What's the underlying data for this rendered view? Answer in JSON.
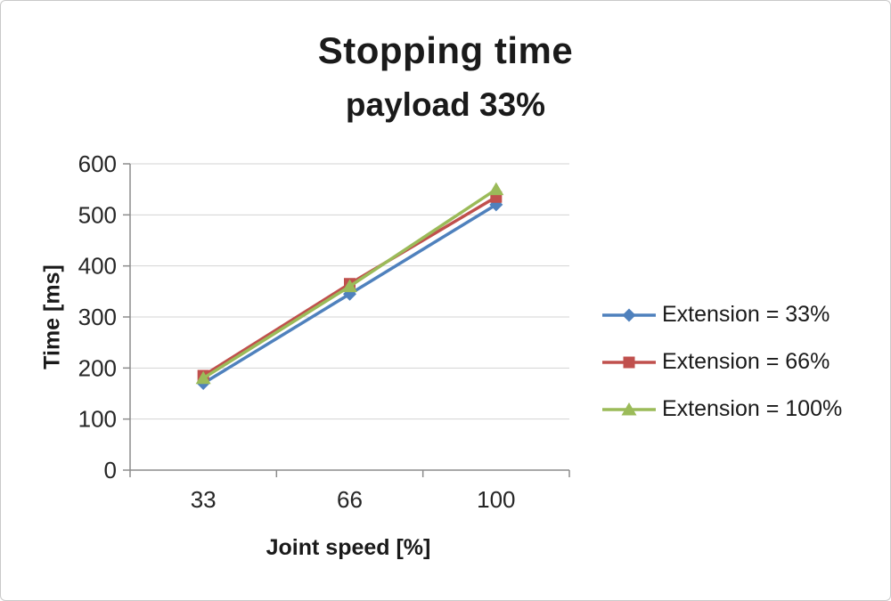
{
  "chart_data": {
    "type": "line",
    "title": "Stopping time",
    "subtitle": "payload 33%",
    "xlabel": "Joint speed [%]",
    "ylabel": "Time [ms]",
    "categories": [
      "33",
      "66",
      "100"
    ],
    "series": [
      {
        "name": "Extension = 33%",
        "marker": "diamond",
        "color": "#4F81BD",
        "values": [
          170,
          345,
          520
        ]
      },
      {
        "name": "Extension = 66%",
        "marker": "square",
        "color": "#C0504D",
        "values": [
          185,
          365,
          535
        ]
      },
      {
        "name": "Extension = 100%",
        "marker": "triangle",
        "color": "#9BBB59",
        "values": [
          180,
          360,
          550
        ]
      }
    ],
    "ylim": [
      0,
      600
    ],
    "ytick_step": 100,
    "grid": true,
    "legend_position": "right",
    "colors": {
      "gridline": "#d3d3d3",
      "axis": "#8c8c8c",
      "text": "#262626"
    }
  }
}
